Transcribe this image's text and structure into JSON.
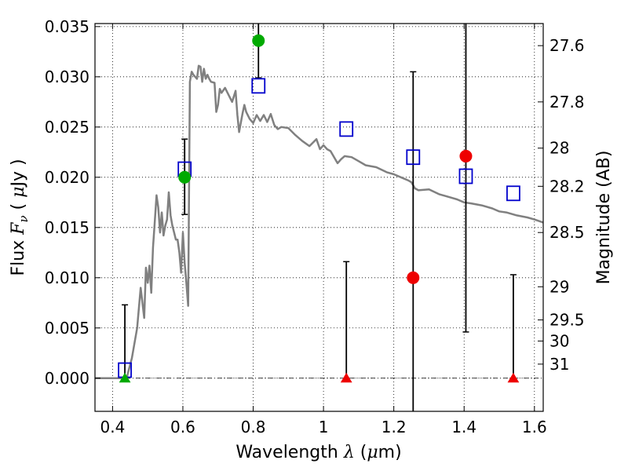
{
  "chart_data": {
    "type": "scatter",
    "xlabel": "Wavelength",
    "xlabel_symbol": "λ",
    "xlabel_unit_open": " (",
    "xlabel_unit_mu": "μ",
    "xlabel_unit_rest": "m)",
    "ylabel": "Flux",
    "ylabel_symbol": "F",
    "ylabel_subscript": "ν",
    "ylabel_unit_open": " ( ",
    "ylabel_unit_mu": "μ",
    "ylabel_unit_rest": "Jy )",
    "y2label": "Magnitude (AB)",
    "xlim": [
      0.35,
      1.625
    ],
    "ylim": [
      -0.0033,
      0.0353
    ],
    "grid": true,
    "xticks": [
      0.4,
      0.6,
      0.8,
      1.0,
      1.2,
      1.4,
      1.6
    ],
    "xtick_labels": [
      "0.4",
      "0.6",
      "0.8",
      "1",
      "1.2",
      "1.4",
      "1.6"
    ],
    "yticks": [
      0.0,
      0.005,
      0.01,
      0.015,
      0.02,
      0.025,
      0.03,
      0.035
    ],
    "ytick_labels": [
      "0.000",
      "0.005",
      "0.010",
      "0.015",
      "0.020",
      "0.025",
      "0.030",
      "0.035"
    ],
    "y2_ticks": [
      {
        "label": "27.6",
        "flux": 0.0331
      },
      {
        "label": "27.8",
        "flux": 0.0275
      },
      {
        "label": "28",
        "flux": 0.0229
      },
      {
        "label": "28.2",
        "flux": 0.0191
      },
      {
        "label": "28.5",
        "flux": 0.0145
      },
      {
        "label": "29",
        "flux": 0.0091
      },
      {
        "label": "29.5",
        "flux": 0.0058
      },
      {
        "label": "30",
        "flux": 0.0037
      },
      {
        "label": "31",
        "flux": 0.0014
      }
    ],
    "zero_line": 0.0,
    "colors": {
      "model": "#808080",
      "model_points": "#0000cc",
      "green": "#00aa00",
      "red": "#ee0000",
      "errorbar": "#000000"
    },
    "series": [
      {
        "kind": "line",
        "color": "#808080",
        "x": [
          0.35,
          0.44,
          0.455,
          0.47,
          0.48,
          0.49,
          0.495,
          0.5,
          0.505,
          0.51,
          0.515,
          0.52,
          0.525,
          0.53,
          0.535,
          0.54,
          0.545,
          0.55,
          0.555,
          0.56,
          0.565,
          0.57,
          0.575,
          0.58,
          0.585,
          0.59,
          0.595,
          0.6,
          0.605,
          0.61,
          0.615,
          0.62,
          0.625,
          0.63,
          0.64,
          0.645,
          0.65,
          0.655,
          0.66,
          0.665,
          0.67,
          0.675,
          0.68,
          0.69,
          0.695,
          0.7,
          0.705,
          0.71,
          0.72,
          0.73,
          0.74,
          0.75,
          0.755,
          0.76,
          0.77,
          0.775,
          0.78,
          0.79,
          0.8,
          0.81,
          0.82,
          0.83,
          0.84,
          0.85,
          0.86,
          0.87,
          0.88,
          0.9,
          0.92,
          0.94,
          0.96,
          0.98,
          0.99,
          1.0,
          1.01,
          1.02,
          1.04,
          1.05,
          1.06,
          1.08,
          1.1,
          1.12,
          1.15,
          1.18,
          1.2,
          1.22,
          1.24,
          1.25,
          1.26,
          1.27,
          1.3,
          1.33,
          1.35,
          1.38,
          1.4,
          1.42,
          1.45,
          1.48,
          1.5,
          1.52,
          1.55,
          1.58,
          1.6,
          1.625
        ],
        "y": [
          0.0,
          0.0,
          0.002,
          0.005,
          0.009,
          0.006,
          0.011,
          0.0095,
          0.0112,
          0.0085,
          0.013,
          0.0155,
          0.0182,
          0.017,
          0.0145,
          0.0165,
          0.0142,
          0.0152,
          0.0158,
          0.0185,
          0.0162,
          0.0152,
          0.0145,
          0.0138,
          0.0138,
          0.0125,
          0.0105,
          0.0145,
          0.0115,
          0.0095,
          0.0072,
          0.0295,
          0.0305,
          0.0302,
          0.0298,
          0.0311,
          0.031,
          0.0295,
          0.0308,
          0.0298,
          0.0302,
          0.0298,
          0.0295,
          0.0294,
          0.0265,
          0.0272,
          0.0288,
          0.0284,
          0.0289,
          0.0282,
          0.0275,
          0.0286,
          0.0262,
          0.0245,
          0.0264,
          0.0272,
          0.0265,
          0.0258,
          0.0254,
          0.0262,
          0.0256,
          0.0262,
          0.0255,
          0.0263,
          0.0252,
          0.0248,
          0.025,
          0.0249,
          0.0242,
          0.0236,
          0.0231,
          0.0238,
          0.0228,
          0.0232,
          0.0228,
          0.0226,
          0.0214,
          0.0218,
          0.0221,
          0.022,
          0.0216,
          0.0212,
          0.021,
          0.0205,
          0.0203,
          0.02,
          0.0197,
          0.0195,
          0.0189,
          0.0187,
          0.0188,
          0.0183,
          0.0181,
          0.0178,
          0.0175,
          0.0174,
          0.0172,
          0.0169,
          0.0166,
          0.0165,
          0.0162,
          0.016,
          0.0158,
          0.0155
        ]
      },
      {
        "kind": "squares",
        "color": "#0000cc",
        "x": [
          0.435,
          0.605,
          0.815,
          1.065,
          1.255,
          1.405,
          1.54
        ],
        "y": [
          0.0008,
          0.0208,
          0.0291,
          0.0248,
          0.022,
          0.0201,
          0.0184
        ]
      },
      {
        "kind": "points",
        "color": "#00aa00",
        "shape": "circle",
        "x": [
          0.605,
          0.815
        ],
        "y": [
          0.02,
          0.0336
        ],
        "yerr_low": [
          0.0163,
          0.0299
        ],
        "yerr_high": [
          0.0238,
          0.038
        ]
      },
      {
        "kind": "points",
        "color": "#00aa00",
        "shape": "triangle",
        "x": [
          0.435
        ],
        "y": [
          0.0
        ],
        "yerr_low": [
          0.0
        ],
        "yerr_high": [
          0.0073
        ]
      },
      {
        "kind": "points",
        "color": "#ee0000",
        "shape": "circle",
        "x": [
          1.255,
          1.405
        ],
        "y": [
          0.01,
          0.0221
        ],
        "yerr_low": [
          -0.005,
          0.0046
        ],
        "yerr_high": [
          0.0305,
          0.038
        ]
      },
      {
        "kind": "points",
        "color": "#ee0000",
        "shape": "triangle",
        "x": [
          1.065,
          1.54
        ],
        "y": [
          0.0,
          0.0
        ],
        "yerr_low": [
          0.0,
          0.0
        ],
        "yerr_high": [
          0.0116,
          0.0103
        ]
      }
    ]
  }
}
